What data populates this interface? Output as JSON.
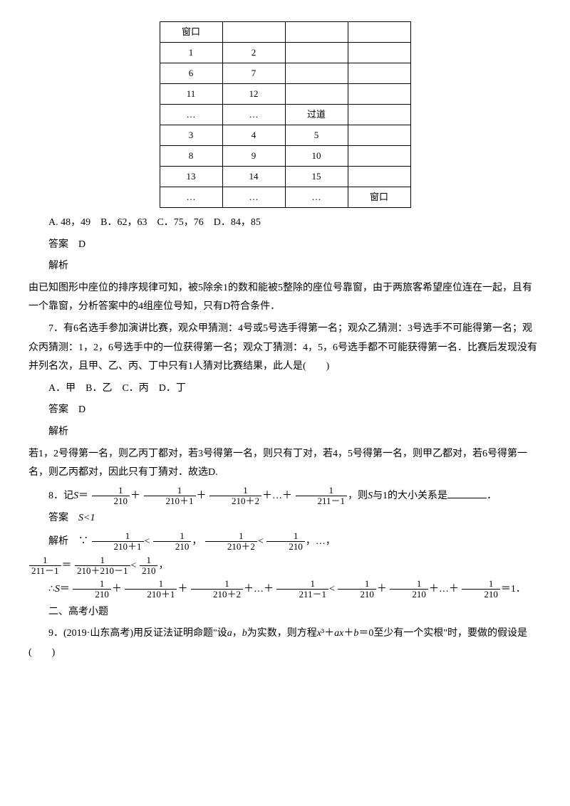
{
  "seatTable": {
    "rows": [
      [
        "窗口",
        "",
        "",
        ""
      ],
      [
        "1",
        "2",
        "",
        ""
      ],
      [
        "6",
        "7",
        "",
        ""
      ],
      [
        "11",
        "12",
        "",
        ""
      ],
      [
        "…",
        "…",
        "过道",
        ""
      ],
      [
        "3",
        "4",
        "5",
        ""
      ],
      [
        "8",
        "9",
        "10",
        ""
      ],
      [
        "13",
        "14",
        "15",
        ""
      ],
      [
        "…",
        "…",
        "…",
        "窗口"
      ]
    ]
  },
  "q6": {
    "options": "A. 48，49　B．62，63　C．75，76　D．84，85",
    "answerLabel": "答案　D",
    "analysisLabel": "解析",
    "analysis": "由已知图形中座位的排序规律可知，被5除余1的数和能被5整除的座位号靠窗，由于两旅客希望座位连在一起，且有一个靠窗，分析答案中的4组座位号知，只有D符合条件．"
  },
  "q7": {
    "stem1": "7．有6名选手参加演讲比赛，观众甲猜测：4号或5号选手得第一名；观众乙猜测：3号选手不可能得第一名；观众丙猜测：1，2，6号选手中的一位获得第一名；观众丁猜测：4，5，6号选手都不可能获得第一名．比赛后发现没有并列名次，且甲、乙、丙、丁中只有1人猜对比赛结果，此人是(　　)",
    "options": "A．甲　B．乙　C．丙　D．丁",
    "answerLabel": "答案　D",
    "analysisLabel": "解析",
    "analysis": "若1，2号得第一名，则乙丙丁都对，若3号得第一名，则只有丁对，若4，5号得第一名，则甲乙都对，若6号得第一名，则乙丙都对，因此只有丁猜对．故选D."
  },
  "q8": {
    "prefix": "8．记",
    "S": "S",
    "eq": "＝",
    "plus": "＋",
    "dots": "…",
    "tail": "，则",
    "tail2": "与1的大小关系是",
    "answerLabel": "答案　",
    "answer": "S<1",
    "analysisLabel": "解析　∵",
    "line3a": "＝",
    "therefore": "∴",
    "ltone": "＝1．",
    "lt": "<",
    "comma": "，",
    "period": "．",
    "frac": {
      "one": "1",
      "d210": "210",
      "d210p1": "210＋1",
      "d210p2": "210＋2",
      "d211m1": "211－1",
      "d210p210m1": "210＋210－1"
    }
  },
  "section2": "二、高考小题",
  "q9": {
    "stem": "9．(2019·山东高考)用反证法证明命题\"设a，b为实数，则方程x³＋ax＋b＝0至少有一个实根\"时，要做的假设是(　　)"
  }
}
